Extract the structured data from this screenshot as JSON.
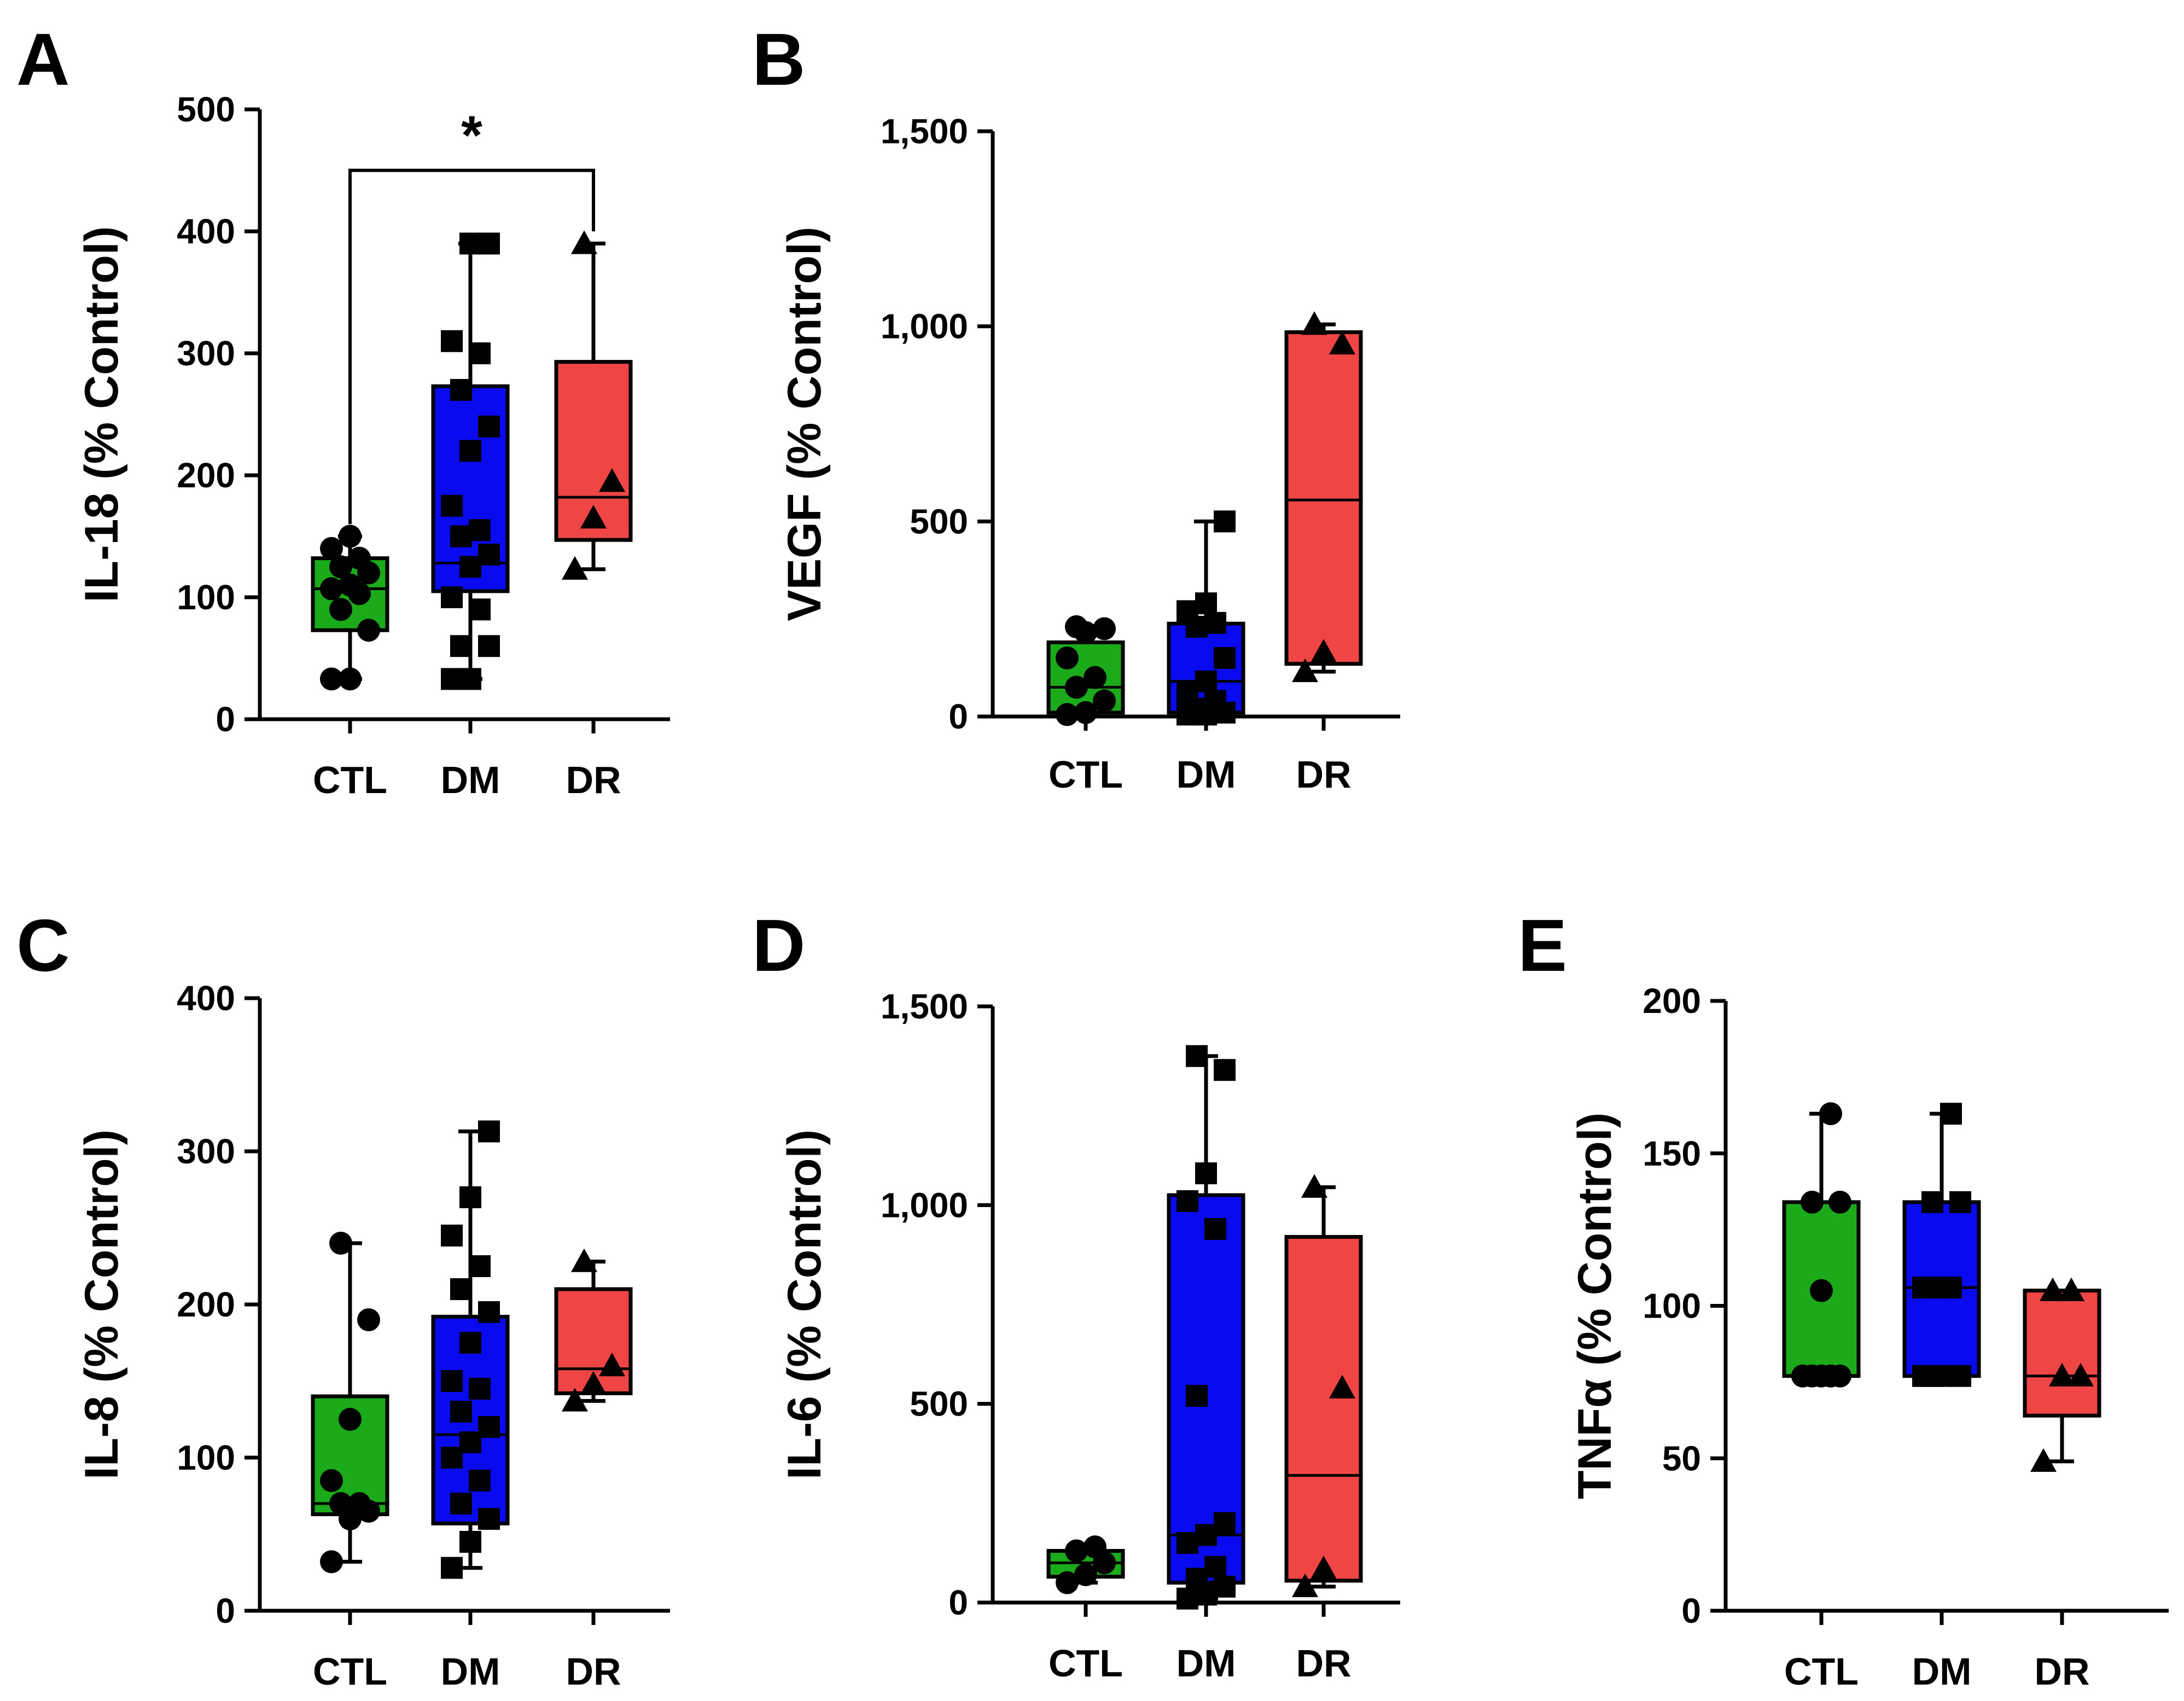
{
  "chart_data": [
    {
      "panel": "A",
      "type": "box",
      "ylabel": "IL-18 (% Control)",
      "ylim": [
        0,
        500
      ],
      "ticks": [
        0,
        100,
        200,
        300,
        400,
        500
      ],
      "tick_labels": [
        "0",
        "100",
        "200",
        "300",
        "400",
        "500"
      ],
      "categories": [
        "CTL",
        "DM",
        "DR"
      ],
      "boxes": [
        {
          "category": "CTL",
          "min": 33,
          "q1": 73,
          "median": 107,
          "q3": 132,
          "max": 150,
          "marker": "circle",
          "color": "#1aaa1a",
          "points": [
            33,
            33,
            73,
            90,
            103,
            107,
            110,
            120,
            125,
            132,
            140,
            150
          ]
        },
        {
          "category": "DM",
          "min": 33,
          "q1": 105,
          "median": 128,
          "q3": 273,
          "max": 390,
          "marker": "square",
          "color": "#0a0af0",
          "points": [
            33,
            33,
            60,
            60,
            90,
            100,
            125,
            135,
            150,
            155,
            175,
            220,
            240,
            270,
            300,
            310,
            390,
            390
          ]
        },
        {
          "category": "DR",
          "min": 123,
          "q1": 147,
          "median": 182,
          "q3": 293,
          "max": 390,
          "marker": "triangle",
          "color": "#f04545",
          "points": [
            123,
            165,
            195,
            390
          ]
        }
      ],
      "annotation": {
        "from": "CTL",
        "to": "DR",
        "text": "*"
      }
    },
    {
      "panel": "B",
      "type": "box",
      "ylabel": "VEGF (% Control)",
      "ylim": [
        0,
        1500
      ],
      "ticks": [
        0,
        500,
        1000,
        1500
      ],
      "tick_labels": [
        "0",
        "500",
        "1,000",
        "1,500"
      ],
      "categories": [
        "CTL",
        "DM",
        "DR"
      ],
      "boxes": [
        {
          "category": "CTL",
          "min": 5,
          "q1": 10,
          "median": 75,
          "q3": 190,
          "max": 230,
          "marker": "circle",
          "color": "#1aaa1a",
          "points": [
            5,
            10,
            40,
            75,
            100,
            150,
            215,
            225,
            230
          ]
        },
        {
          "category": "DM",
          "min": 5,
          "q1": 10,
          "median": 90,
          "q3": 238,
          "max": 500,
          "marker": "square",
          "color": "#0a0af0",
          "points": [
            5,
            5,
            10,
            20,
            40,
            60,
            90,
            150,
            230,
            240,
            270,
            290,
            500
          ]
        },
        {
          "category": "DR",
          "min": 115,
          "q1": 135,
          "median": 555,
          "q3": 985,
          "max": 1005,
          "marker": "triangle",
          "color": "#f04545",
          "points": [
            115,
            165,
            955,
            1005
          ]
        }
      ]
    },
    {
      "panel": "C",
      "type": "box",
      "ylabel": "IL-8 (% Control)",
      "ylim": [
        0,
        400
      ],
      "ticks": [
        0,
        100,
        200,
        300,
        400
      ],
      "tick_labels": [
        "0",
        "100",
        "200",
        "300",
        "400"
      ],
      "categories": [
        "CTL",
        "DM",
        "DR"
      ],
      "boxes": [
        {
          "category": "CTL",
          "min": 32,
          "q1": 63,
          "median": 70,
          "q3": 140,
          "max": 240,
          "marker": "circle",
          "color": "#1aaa1a",
          "points": [
            32,
            60,
            65,
            70,
            70,
            85,
            125,
            190,
            240
          ]
        },
        {
          "category": "DM",
          "min": 28,
          "q1": 57,
          "median": 115,
          "q3": 192,
          "max": 313,
          "marker": "square",
          "color": "#0a0af0",
          "points": [
            28,
            45,
            60,
            70,
            85,
            100,
            110,
            120,
            130,
            145,
            150,
            175,
            195,
            210,
            225,
            245,
            270,
            313
          ]
        },
        {
          "category": "DR",
          "min": 137,
          "q1": 142,
          "median": 158,
          "q3": 210,
          "max": 228,
          "marker": "triangle",
          "color": "#f04545",
          "points": [
            137,
            148,
            160,
            228
          ]
        }
      ]
    },
    {
      "panel": "D",
      "type": "box",
      "ylabel": "IL-6 (% Control)",
      "ylim": [
        0,
        1500
      ],
      "ticks": [
        0,
        500,
        1000,
        1500
      ],
      "tick_labels": [
        "0",
        "500",
        "1,000",
        "1,500"
      ],
      "categories": [
        "CTL",
        "DM",
        "DR"
      ],
      "boxes": [
        {
          "category": "CTL",
          "min": 50,
          "q1": 65,
          "median": 100,
          "q3": 130,
          "max": 140,
          "marker": "circle",
          "color": "#1aaa1a",
          "points": [
            50,
            70,
            100,
            130,
            140
          ]
        },
        {
          "category": "DM",
          "min": 10,
          "q1": 50,
          "median": 170,
          "q3": 1025,
          "max": 1375,
          "marker": "square",
          "color": "#0a0af0",
          "points": [
            10,
            20,
            40,
            60,
            90,
            150,
            170,
            200,
            520,
            940,
            1010,
            1080,
            1340,
            1375
          ]
        },
        {
          "category": "DR",
          "min": 40,
          "q1": 55,
          "median": 320,
          "q3": 920,
          "max": 1045,
          "marker": "triangle",
          "color": "#f04545",
          "points": [
            40,
            85,
            540,
            1045
          ]
        }
      ]
    },
    {
      "panel": "E",
      "type": "box",
      "ylabel": "TNFα (% Control)",
      "ylim": [
        0,
        200
      ],
      "ticks": [
        0,
        50,
        100,
        150,
        200
      ],
      "tick_labels": [
        "0",
        "50",
        "100",
        "150",
        "200"
      ],
      "categories": [
        "CTL",
        "DM",
        "DR"
      ],
      "boxes": [
        {
          "category": "CTL",
          "min": 77,
          "q1": 77,
          "median": 77,
          "q3": 134,
          "max": 163,
          "marker": "circle",
          "color": "#1aaa1a",
          "points": [
            77,
            77,
            77,
            77,
            77,
            77,
            105,
            134,
            134,
            163
          ]
        },
        {
          "category": "DM",
          "min": 77,
          "q1": 77,
          "median": 106,
          "q3": 134,
          "max": 163,
          "marker": "square",
          "color": "#0a0af0",
          "points": [
            77,
            77,
            77,
            77,
            106,
            106,
            106,
            134,
            134,
            163
          ]
        },
        {
          "category": "DR",
          "min": 49,
          "q1": 64,
          "median": 77,
          "q3": 105,
          "max": 105,
          "marker": "triangle",
          "color": "#f04545",
          "points": [
            49,
            77,
            77,
            105,
            105
          ]
        }
      ]
    }
  ]
}
